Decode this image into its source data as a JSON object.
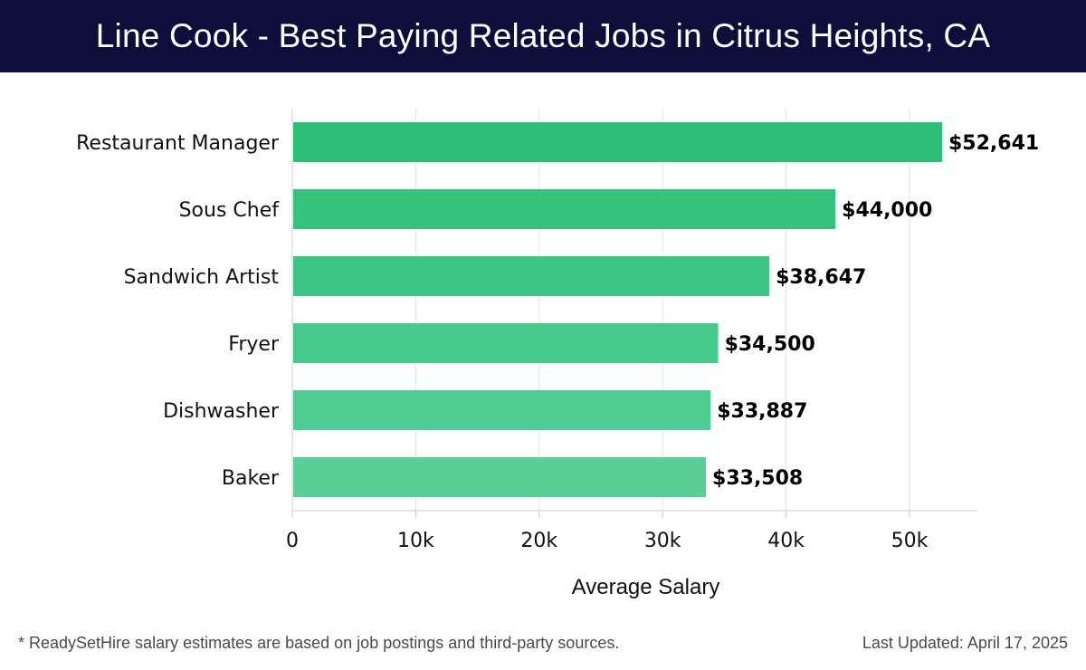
{
  "header": {
    "title": "Line Cook - Best Paying Related Jobs in Citrus Heights, CA"
  },
  "footer": {
    "note": "* ReadySetHire salary estimates are based on job postings and third-party sources.",
    "last_updated": "Last Updated: April 17, 2025"
  },
  "colors": {
    "header_bg": "#0d0f3a",
    "bar_top": "#2bbf77",
    "bar_bottom": "#58cf97",
    "grid": "#e3e3e3"
  },
  "chart_data": {
    "type": "bar",
    "orientation": "horizontal",
    "title": "Line Cook - Best Paying Related Jobs in Citrus Heights, CA",
    "xlabel": "Average Salary",
    "ylabel": "",
    "categories": [
      "Restaurant Manager",
      "Sous Chef",
      "Sandwich Artist",
      "Fryer",
      "Dishwasher",
      "Baker"
    ],
    "values": [
      52641,
      44000,
      38647,
      34500,
      33887,
      33508
    ],
    "value_labels": [
      "$52,641",
      "$44,000",
      "$38,647",
      "$34,500",
      "$33,887",
      "$33,508"
    ],
    "xlim": [
      0,
      55500
    ],
    "xticks": [
      0,
      10000,
      20000,
      30000,
      40000,
      50000
    ],
    "xtick_labels": [
      "0",
      "10k",
      "20k",
      "30k",
      "40k",
      "50k"
    ],
    "grid": true
  }
}
